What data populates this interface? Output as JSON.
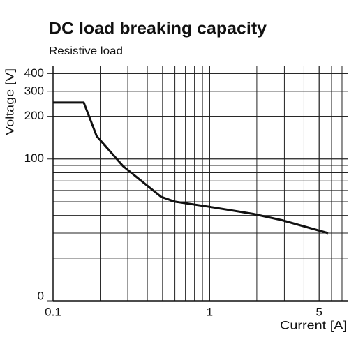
{
  "chart_data": {
    "type": "line",
    "title": "DC load breaking capacity",
    "subtitle": "Resistive load",
    "x_label": "Current [A]",
    "y_label": "Voltage [V]",
    "log_x": true,
    "log_y": true,
    "grid": true,
    "xlim": [
      0.1,
      7.6
    ],
    "ylim": [
      10,
      450
    ],
    "xticks": [
      0.1,
      1,
      5
    ],
    "yticks": [
      {
        "value": 10,
        "label": "0"
      },
      100,
      200,
      300,
      400
    ],
    "series": [
      {
        "name": "Resistive load",
        "color": "#111111",
        "x": [
          0.1,
          0.157,
          0.19,
          0.28,
          0.49,
          0.6,
          1,
          1.9,
          2.9,
          5.7
        ],
        "values": [
          250,
          250,
          145,
          89,
          54,
          50,
          46,
          41,
          37,
          30
        ]
      }
    ]
  }
}
